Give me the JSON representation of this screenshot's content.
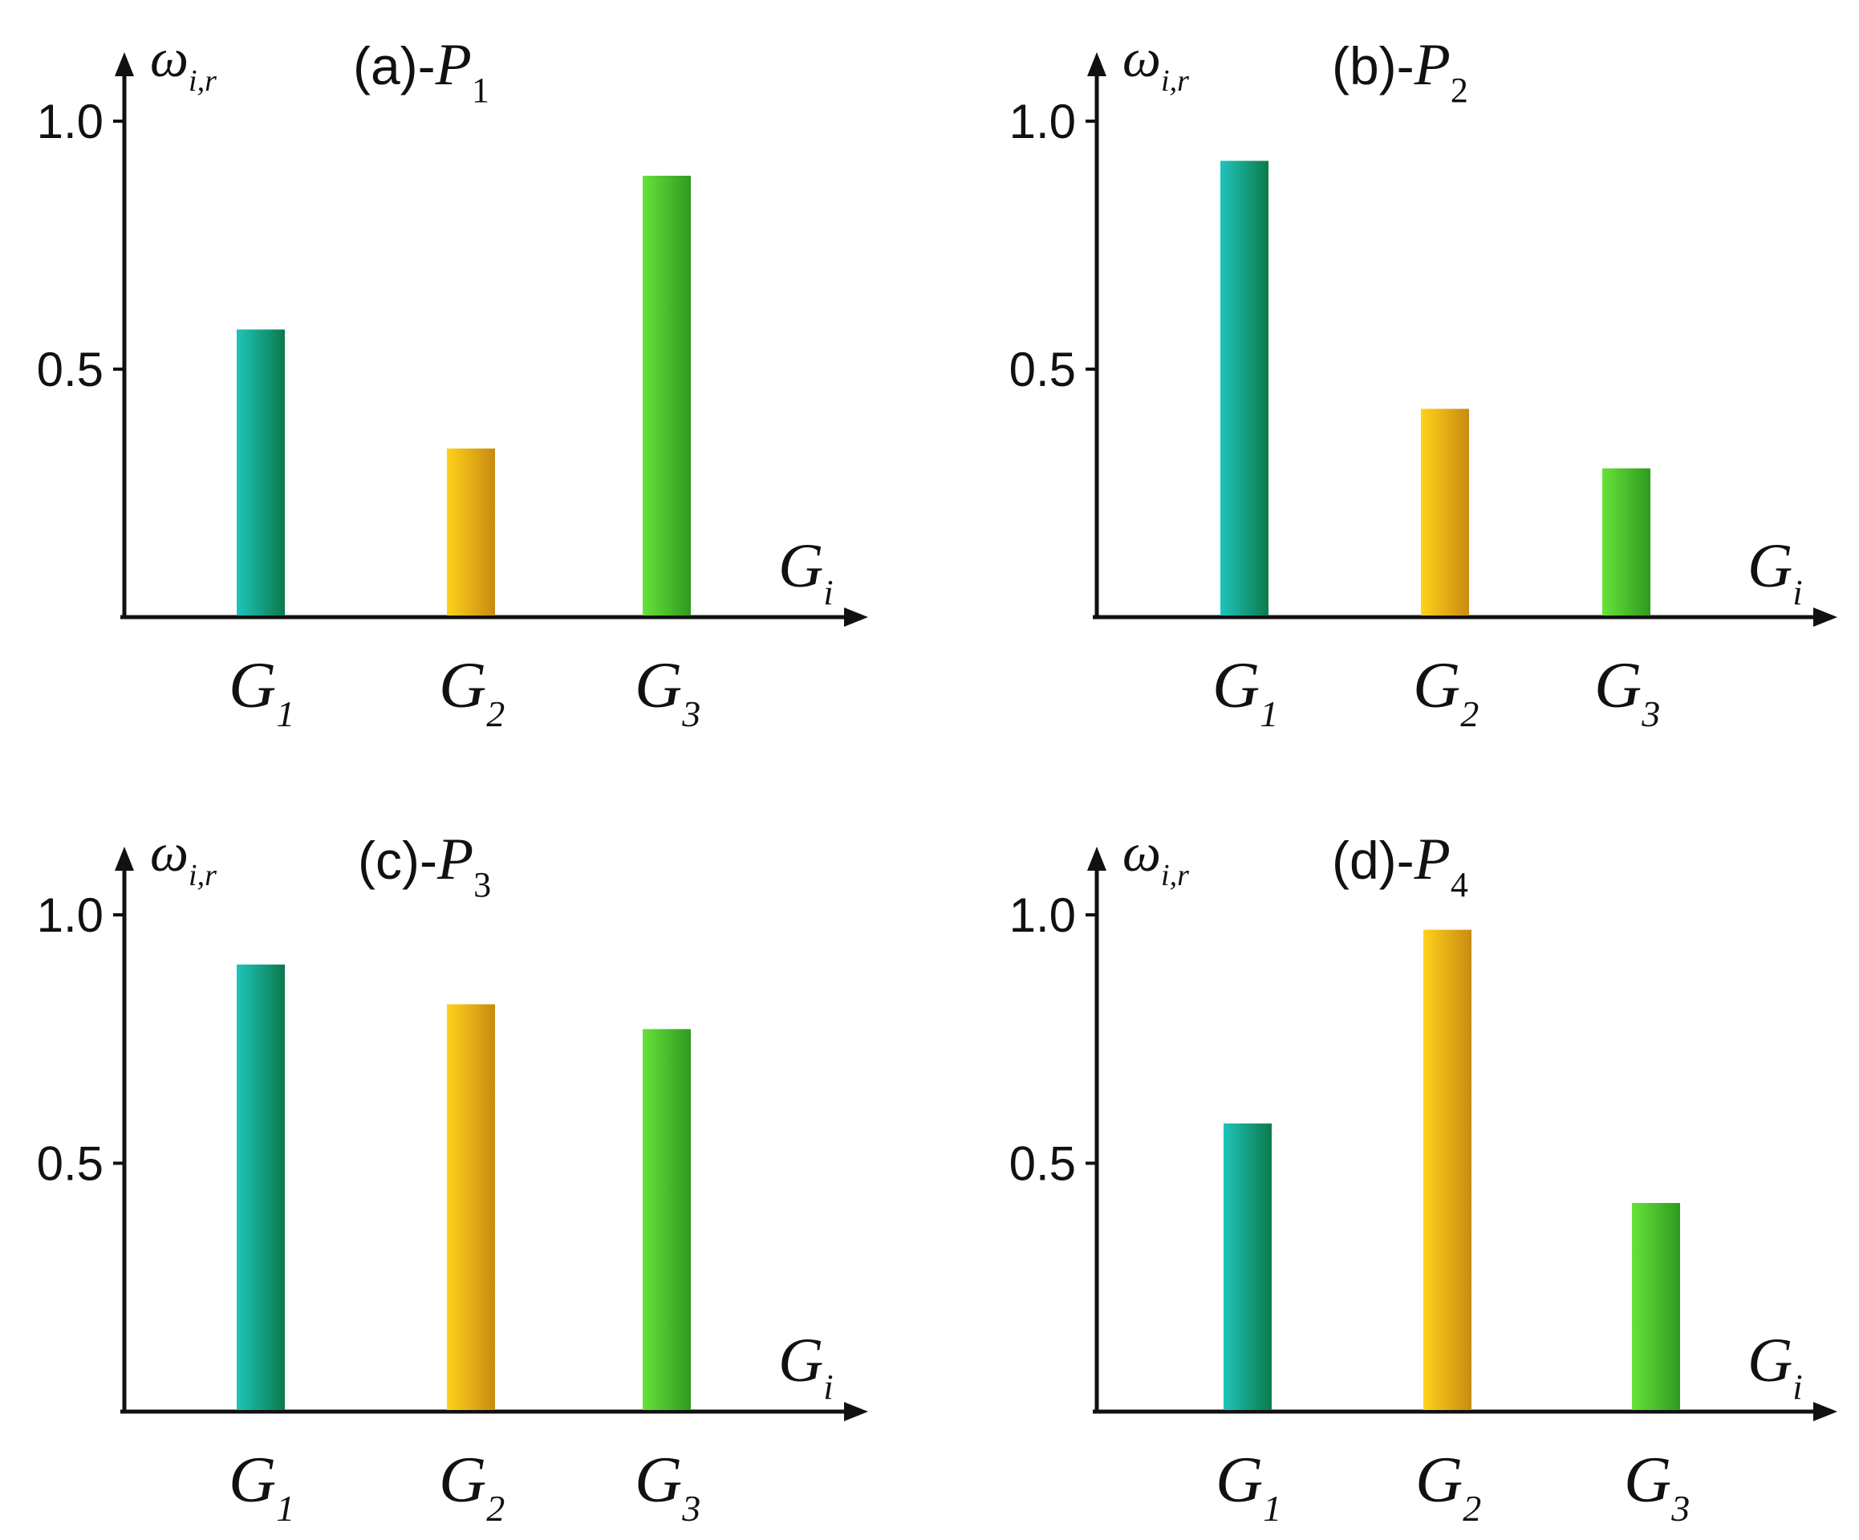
{
  "chart_data": [
    {
      "type": "bar",
      "panel": "(a)",
      "title_prefix": "(a)-",
      "title_symbol": "P",
      "title_subscript": "1",
      "ylabel_symbol": "ω",
      "ylabel_subscript": "i,r",
      "xlabel_symbol": "G",
      "xlabel_subscript": "i",
      "categories": [
        {
          "symbol": "G",
          "subscript": "1"
        },
        {
          "symbol": "G",
          "subscript": "2"
        },
        {
          "symbol": "G",
          "subscript": "3"
        }
      ],
      "values": [
        0.58,
        0.34,
        0.89
      ],
      "yticks": [
        "0.5",
        "1.0"
      ],
      "ytick_values": [
        0.5,
        1.0
      ],
      "ylim": [
        0,
        1.25
      ]
    },
    {
      "type": "bar",
      "panel": "(b)",
      "title_prefix": "(b)-",
      "title_symbol": "P",
      "title_subscript": "2",
      "ylabel_symbol": "ω",
      "ylabel_subscript": "i,r",
      "xlabel_symbol": "G",
      "xlabel_subscript": "i",
      "categories": [
        {
          "symbol": "G",
          "subscript": "1"
        },
        {
          "symbol": "G",
          "subscript": "2"
        },
        {
          "symbol": "G",
          "subscript": "3"
        }
      ],
      "values": [
        0.92,
        0.42,
        0.3
      ],
      "yticks": [
        "0.5",
        "1.0"
      ],
      "ytick_values": [
        0.5,
        1.0
      ],
      "ylim": [
        0,
        1.25
      ]
    },
    {
      "type": "bar",
      "panel": "(c)",
      "title_prefix": "(c)-",
      "title_symbol": "P",
      "title_subscript": "3",
      "ylabel_symbol": "ω",
      "ylabel_subscript": "i,r",
      "xlabel_symbol": "G",
      "xlabel_subscript": "i",
      "categories": [
        {
          "symbol": "G",
          "subscript": "1"
        },
        {
          "symbol": "G",
          "subscript": "2"
        },
        {
          "symbol": "G",
          "subscript": "3"
        }
      ],
      "values": [
        0.9,
        0.82,
        0.77
      ],
      "yticks": [
        "0.5",
        "1.0"
      ],
      "ytick_values": [
        0.5,
        1.0
      ],
      "ylim": [
        0,
        1.25
      ]
    },
    {
      "type": "bar",
      "panel": "(d)",
      "title_prefix": "(d)-",
      "title_symbol": "P",
      "title_subscript": "4",
      "ylabel_symbol": "ω",
      "ylabel_subscript": "i,r",
      "xlabel_symbol": "G",
      "xlabel_subscript": "i",
      "categories": [
        {
          "symbol": "G",
          "subscript": "1"
        },
        {
          "symbol": "G",
          "subscript": "2"
        },
        {
          "symbol": "G",
          "subscript": "3"
        }
      ],
      "values": [
        0.58,
        0.97,
        0.42
      ],
      "yticks": [
        "0.5",
        "1.0"
      ],
      "ytick_values": [
        0.5,
        1.0
      ],
      "ylim": [
        0,
        1.25
      ]
    }
  ],
  "bar_colors": [
    {
      "light": "#1fc4bb",
      "dark": "#0b7a4a"
    },
    {
      "light": "#ffd21a",
      "dark": "#c98a12"
    },
    {
      "light": "#66e23a",
      "dark": "#2f9a1f"
    }
  ],
  "axis_color": "#111111"
}
